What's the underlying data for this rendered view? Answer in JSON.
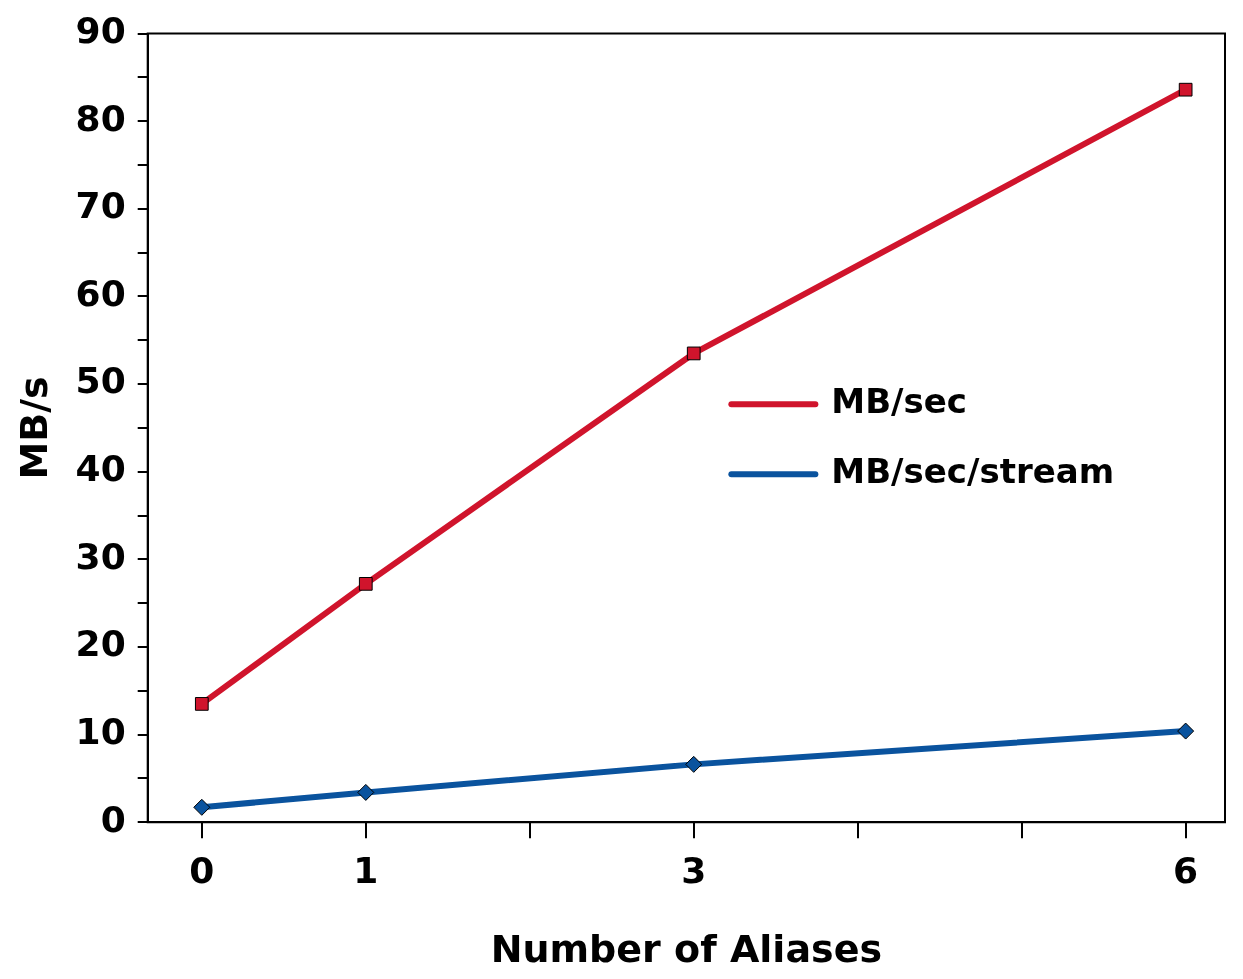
{
  "chart_data": {
    "type": "line",
    "xlabel": "Number of Aliases",
    "ylabel": "MB/s",
    "x": [
      0,
      1,
      3,
      6
    ],
    "series": [
      {
        "name": "MB/sec",
        "color": "#d0142c",
        "marker": "square",
        "values": [
          13.5,
          27.2,
          53.5,
          83.6
        ]
      },
      {
        "name": "MB/sec/stream",
        "color": "#0a539e",
        "marker": "diamond",
        "values": [
          1.7,
          3.4,
          6.6,
          10.4
        ]
      }
    ],
    "xlim": [
      -0.33,
      6.24
    ],
    "xticks": [
      0,
      1,
      {
        "value": 2,
        "label": null
      },
      3,
      {
        "value": 4,
        "label": null
      },
      {
        "value": 5,
        "label": null
      },
      6
    ],
    "ylim": [
      0,
      90
    ],
    "yticks": [
      0,
      {
        "value": 5,
        "label": null
      },
      10,
      {
        "value": 15,
        "label": null
      },
      20,
      {
        "value": 25,
        "label": null
      },
      30,
      {
        "value": 35,
        "label": null
      },
      40,
      {
        "value": 45,
        "label": null
      },
      50,
      {
        "value": 55,
        "label": null
      },
      60,
      {
        "value": 65,
        "label": null
      },
      70,
      {
        "value": 75,
        "label": null
      },
      80,
      {
        "value": 85,
        "label": null
      },
      90
    ],
    "grid": false,
    "legend": "right",
    "line_style": "solid"
  }
}
